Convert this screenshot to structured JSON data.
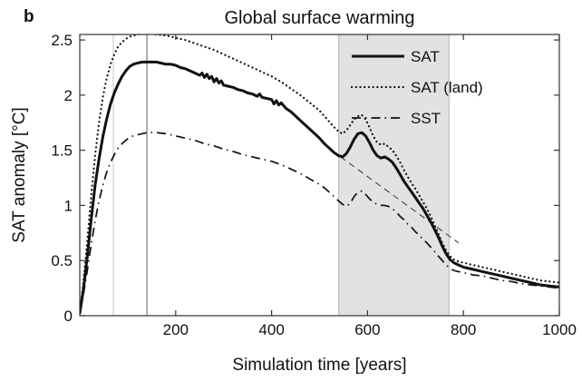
{
  "panel_label": "b",
  "title": "Global surface warming",
  "xlabel": "Simulation time [years]",
  "ylabel": "SAT anomaly [°C]",
  "chart_data": {
    "type": "line",
    "title": "Global surface warming",
    "xlabel": "Simulation time [years]",
    "ylabel": "SAT anomaly [°C]",
    "xlim": [
      0,
      1000
    ],
    "ylim": [
      0,
      2.55
    ],
    "grid": false,
    "legend_position": "top-right-inside",
    "x_ticks": [
      200,
      400,
      600,
      800,
      1000
    ],
    "x_tick_labels": [
      "200",
      "400",
      "600",
      "800",
      "1000"
    ],
    "y_ticks": [
      0,
      0.5,
      1,
      1.5,
      2,
      2.5
    ],
    "y_tick_labels": [
      "0",
      "0.5",
      "1",
      "1.5",
      "2",
      "2.5"
    ],
    "axis_color": "#333333",
    "shaded_band": {
      "x_start": 540,
      "x_end": 770,
      "fill": "#e2e2e2",
      "edge": "#b4b4b4"
    },
    "vlines": [
      {
        "x": 70,
        "color": "#c4c4c4",
        "width": 1
      },
      {
        "x": 140,
        "color": "#5f5f5f",
        "width": 1
      }
    ],
    "reference_line": {
      "name": "linear extrapolation",
      "style": "dashed",
      "color": "#333333",
      "width": 1,
      "points": [
        [
          525,
          1.5
        ],
        [
          790,
          0.66
        ]
      ]
    },
    "series": [
      {
        "name": "SAT",
        "style": "solid",
        "color": "#111111",
        "width": 3,
        "points": [
          [
            0,
            0.02
          ],
          [
            8,
            0.25
          ],
          [
            16,
            0.55
          ],
          [
            24,
            0.88
          ],
          [
            32,
            1.18
          ],
          [
            40,
            1.42
          ],
          [
            48,
            1.62
          ],
          [
            56,
            1.78
          ],
          [
            64,
            1.92
          ],
          [
            72,
            2.02
          ],
          [
            80,
            2.1
          ],
          [
            88,
            2.17
          ],
          [
            96,
            2.22
          ],
          [
            104,
            2.26
          ],
          [
            112,
            2.28
          ],
          [
            120,
            2.29
          ],
          [
            130,
            2.3
          ],
          [
            140,
            2.3
          ],
          [
            150,
            2.3
          ],
          [
            160,
            2.3
          ],
          [
            170,
            2.29
          ],
          [
            180,
            2.28
          ],
          [
            190,
            2.28
          ],
          [
            200,
            2.27
          ],
          [
            210,
            2.25
          ],
          [
            220,
            2.24
          ],
          [
            230,
            2.22
          ],
          [
            240,
            2.2
          ],
          [
            250,
            2.18
          ],
          [
            255,
            2.2
          ],
          [
            260,
            2.16
          ],
          [
            265,
            2.19
          ],
          [
            270,
            2.15
          ],
          [
            275,
            2.17
          ],
          [
            280,
            2.12
          ],
          [
            285,
            2.15
          ],
          [
            290,
            2.11
          ],
          [
            295,
            2.13
          ],
          [
            300,
            2.09
          ],
          [
            310,
            2.08
          ],
          [
            320,
            2.07
          ],
          [
            330,
            2.05
          ],
          [
            340,
            2.04
          ],
          [
            350,
            2.02
          ],
          [
            360,
            2.01
          ],
          [
            370,
            1.99
          ],
          [
            375,
            2.01
          ],
          [
            380,
            1.98
          ],
          [
            390,
            1.97
          ],
          [
            400,
            1.96
          ],
          [
            405,
            1.92
          ],
          [
            410,
            1.95
          ],
          [
            415,
            1.91
          ],
          [
            420,
            1.93
          ],
          [
            430,
            1.88
          ],
          [
            440,
            1.85
          ],
          [
            450,
            1.81
          ],
          [
            460,
            1.77
          ],
          [
            470,
            1.73
          ],
          [
            480,
            1.69
          ],
          [
            490,
            1.65
          ],
          [
            500,
            1.61
          ],
          [
            510,
            1.56
          ],
          [
            520,
            1.52
          ],
          [
            530,
            1.48
          ],
          [
            540,
            1.45
          ],
          [
            548,
            1.44
          ],
          [
            556,
            1.47
          ],
          [
            564,
            1.53
          ],
          [
            572,
            1.6
          ],
          [
            580,
            1.65
          ],
          [
            588,
            1.66
          ],
          [
            596,
            1.63
          ],
          [
            604,
            1.57
          ],
          [
            612,
            1.5
          ],
          [
            620,
            1.45
          ],
          [
            628,
            1.43
          ],
          [
            636,
            1.44
          ],
          [
            644,
            1.42
          ],
          [
            652,
            1.39
          ],
          [
            660,
            1.34
          ],
          [
            668,
            1.28
          ],
          [
            676,
            1.22
          ],
          [
            684,
            1.17
          ],
          [
            692,
            1.12
          ],
          [
            700,
            1.07
          ],
          [
            708,
            1.02
          ],
          [
            716,
            0.97
          ],
          [
            724,
            0.91
          ],
          [
            732,
            0.85
          ],
          [
            740,
            0.78
          ],
          [
            748,
            0.71
          ],
          [
            756,
            0.63
          ],
          [
            764,
            0.56
          ],
          [
            772,
            0.51
          ],
          [
            780,
            0.48
          ],
          [
            790,
            0.46
          ],
          [
            800,
            0.44
          ],
          [
            820,
            0.42
          ],
          [
            840,
            0.4
          ],
          [
            860,
            0.38
          ],
          [
            880,
            0.36
          ],
          [
            900,
            0.34
          ],
          [
            920,
            0.32
          ],
          [
            940,
            0.3
          ],
          [
            960,
            0.28
          ],
          [
            980,
            0.27
          ],
          [
            1000,
            0.26
          ]
        ]
      },
      {
        "name": "SAT (land)",
        "style": "dotted",
        "color": "#111111",
        "width": 2.2,
        "points": [
          [
            0,
            0.02
          ],
          [
            8,
            0.32
          ],
          [
            16,
            0.7
          ],
          [
            24,
            1.1
          ],
          [
            32,
            1.45
          ],
          [
            40,
            1.75
          ],
          [
            48,
            1.98
          ],
          [
            56,
            2.15
          ],
          [
            64,
            2.28
          ],
          [
            72,
            2.37
          ],
          [
            80,
            2.44
          ],
          [
            88,
            2.48
          ],
          [
            96,
            2.51
          ],
          [
            104,
            2.53
          ],
          [
            112,
            2.54
          ],
          [
            120,
            2.55
          ],
          [
            140,
            2.56
          ],
          [
            160,
            2.55
          ],
          [
            180,
            2.54
          ],
          [
            200,
            2.52
          ],
          [
            220,
            2.5
          ],
          [
            240,
            2.47
          ],
          [
            260,
            2.44
          ],
          [
            280,
            2.41
          ],
          [
            300,
            2.37
          ],
          [
            320,
            2.33
          ],
          [
            340,
            2.29
          ],
          [
            360,
            2.25
          ],
          [
            380,
            2.21
          ],
          [
            400,
            2.17
          ],
          [
            420,
            2.12
          ],
          [
            440,
            2.06
          ],
          [
            460,
            2.0
          ],
          [
            480,
            1.93
          ],
          [
            500,
            1.86
          ],
          [
            510,
            1.81
          ],
          [
            520,
            1.76
          ],
          [
            530,
            1.71
          ],
          [
            540,
            1.67
          ],
          [
            548,
            1.65
          ],
          [
            556,
            1.68
          ],
          [
            564,
            1.73
          ],
          [
            572,
            1.78
          ],
          [
            580,
            1.81
          ],
          [
            588,
            1.82
          ],
          [
            596,
            1.78
          ],
          [
            604,
            1.71
          ],
          [
            612,
            1.63
          ],
          [
            620,
            1.57
          ],
          [
            628,
            1.55
          ],
          [
            636,
            1.56
          ],
          [
            644,
            1.53
          ],
          [
            652,
            1.5
          ],
          [
            660,
            1.45
          ],
          [
            668,
            1.39
          ],
          [
            676,
            1.32
          ],
          [
            684,
            1.26
          ],
          [
            692,
            1.2
          ],
          [
            700,
            1.15
          ],
          [
            708,
            1.09
          ],
          [
            716,
            1.03
          ],
          [
            724,
            0.97
          ],
          [
            732,
            0.9
          ],
          [
            740,
            0.82
          ],
          [
            748,
            0.74
          ],
          [
            756,
            0.66
          ],
          [
            764,
            0.59
          ],
          [
            772,
            0.54
          ],
          [
            780,
            0.51
          ],
          [
            790,
            0.49
          ],
          [
            800,
            0.48
          ],
          [
            820,
            0.46
          ],
          [
            840,
            0.44
          ],
          [
            860,
            0.42
          ],
          [
            880,
            0.4
          ],
          [
            900,
            0.38
          ],
          [
            920,
            0.36
          ],
          [
            940,
            0.34
          ],
          [
            960,
            0.32
          ],
          [
            980,
            0.31
          ],
          [
            1000,
            0.3
          ]
        ]
      },
      {
        "name": "SST",
        "style": "dashdot",
        "color": "#111111",
        "width": 1.7,
        "points": [
          [
            0,
            0.02
          ],
          [
            8,
            0.2
          ],
          [
            16,
            0.42
          ],
          [
            24,
            0.65
          ],
          [
            32,
            0.86
          ],
          [
            40,
            1.04
          ],
          [
            48,
            1.18
          ],
          [
            56,
            1.3
          ],
          [
            64,
            1.39
          ],
          [
            72,
            1.46
          ],
          [
            80,
            1.52
          ],
          [
            88,
            1.56
          ],
          [
            96,
            1.59
          ],
          [
            104,
            1.62
          ],
          [
            112,
            1.63
          ],
          [
            120,
            1.64
          ],
          [
            140,
            1.66
          ],
          [
            160,
            1.66
          ],
          [
            180,
            1.65
          ],
          [
            200,
            1.63
          ],
          [
            220,
            1.61
          ],
          [
            240,
            1.59
          ],
          [
            260,
            1.56
          ],
          [
            280,
            1.54
          ],
          [
            300,
            1.51
          ],
          [
            320,
            1.49
          ],
          [
            340,
            1.46
          ],
          [
            360,
            1.44
          ],
          [
            380,
            1.42
          ],
          [
            400,
            1.4
          ],
          [
            420,
            1.37
          ],
          [
            440,
            1.33
          ],
          [
            460,
            1.29
          ],
          [
            480,
            1.24
          ],
          [
            500,
            1.19
          ],
          [
            510,
            1.16
          ],
          [
            520,
            1.12
          ],
          [
            530,
            1.08
          ],
          [
            540,
            1.04
          ],
          [
            548,
            1.01
          ],
          [
            556,
            0.99
          ],
          [
            564,
            1.02
          ],
          [
            572,
            1.08
          ],
          [
            580,
            1.12
          ],
          [
            588,
            1.13
          ],
          [
            596,
            1.1
          ],
          [
            604,
            1.06
          ],
          [
            612,
            1.03
          ],
          [
            620,
            1.01
          ],
          [
            628,
            1.0
          ],
          [
            636,
            1.0
          ],
          [
            644,
            0.99
          ],
          [
            652,
            0.97
          ],
          [
            660,
            0.94
          ],
          [
            668,
            0.9
          ],
          [
            676,
            0.87
          ],
          [
            684,
            0.83
          ],
          [
            692,
            0.8
          ],
          [
            700,
            0.76
          ],
          [
            708,
            0.73
          ],
          [
            716,
            0.69
          ],
          [
            724,
            0.66
          ],
          [
            732,
            0.62
          ],
          [
            740,
            0.58
          ],
          [
            748,
            0.54
          ],
          [
            756,
            0.5
          ],
          [
            764,
            0.46
          ],
          [
            772,
            0.43
          ],
          [
            780,
            0.41
          ],
          [
            790,
            0.4
          ],
          [
            800,
            0.39
          ],
          [
            820,
            0.37
          ],
          [
            840,
            0.36
          ],
          [
            860,
            0.34
          ],
          [
            880,
            0.32
          ],
          [
            900,
            0.31
          ],
          [
            920,
            0.29
          ],
          [
            940,
            0.28
          ],
          [
            960,
            0.27
          ],
          [
            980,
            0.26
          ],
          [
            1000,
            0.25
          ]
        ]
      }
    ]
  }
}
